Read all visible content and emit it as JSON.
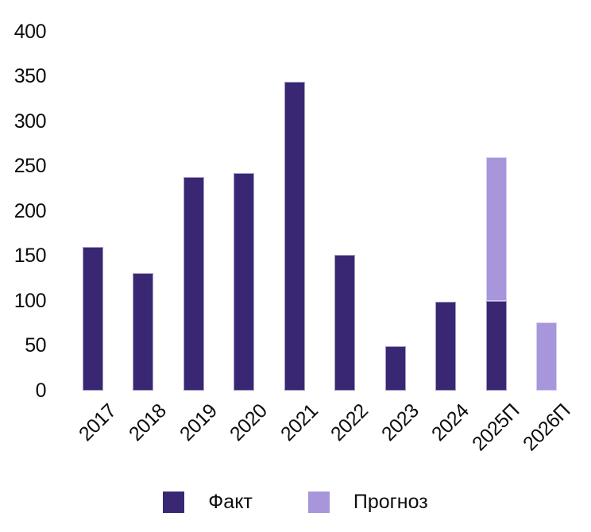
{
  "chart_data": {
    "type": "bar",
    "stacked": true,
    "title": "",
    "xlabel": "",
    "ylabel": "",
    "categories": [
      "2017",
      "2018",
      "2019",
      "2020",
      "2021",
      "2022",
      "2023",
      "2024",
      "2025П",
      "2026П"
    ],
    "series": [
      {
        "name": "Факт",
        "color": "#392774",
        "values": [
          160,
          131,
          238,
          242,
          344,
          151,
          49,
          99,
          100,
          0
        ]
      },
      {
        "name": "Прогноз",
        "color": "#a796db",
        "values": [
          0,
          0,
          0,
          0,
          0,
          0,
          0,
          0,
          160,
          76
        ]
      }
    ],
    "ylim": [
      0,
      400
    ],
    "yticks": [
      0,
      50,
      100,
      150,
      200,
      250,
      300,
      350,
      400
    ],
    "grid": false,
    "legend_position": "bottom",
    "bar_totals": {
      "2025П": 260
    }
  }
}
